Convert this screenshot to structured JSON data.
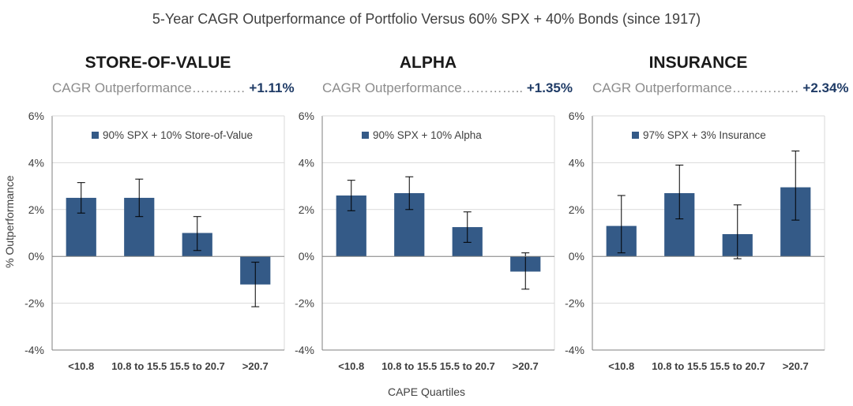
{
  "title": "5-Year CAGR Outperformance of Portfolio Versus 60% SPX + 40% Bonds (since 1917)",
  "xlabel": "CAPE Quartiles",
  "ylabel": "% Outperformance",
  "colors": {
    "bar": "#345a87",
    "text": "#404040",
    "accent": "#1f3b66",
    "grid": "#d9d9d9",
    "subtitle": "#8c8c8c"
  },
  "panels": [
    {
      "heading": "STORE-OF-VALUE",
      "subtitle_label": "CAGR Outperformance",
      "subtitle_dots": "…………",
      "subtitle_value": "+1.11%",
      "legend": "90% SPX + 10% Store-of-Value"
    },
    {
      "heading": "ALPHA",
      "subtitle_label": "CAGR Outperformance",
      "subtitle_dots": "…………..",
      "subtitle_value": "+1.35%",
      "legend": "90% SPX + 10% Alpha"
    },
    {
      "heading": "INSURANCE",
      "subtitle_label": "CAGR Outperformance",
      "subtitle_dots": "……………",
      "subtitle_value": "+2.34%",
      "legend": "97% SPX + 3% Insurance"
    }
  ],
  "chart_data": [
    {
      "type": "bar",
      "title": "STORE-OF-VALUE",
      "categories": [
        "<10.8",
        "10.8 to 15.5",
        "15.5 to 20.7",
        ">20.7"
      ],
      "series": [
        {
          "name": "90% SPX + 10% Store-of-Value",
          "values": [
            2.5,
            2.5,
            1.0,
            -1.2
          ]
        }
      ],
      "error_low": [
        1.85,
        1.7,
        0.25,
        -2.15
      ],
      "error_high": [
        3.15,
        3.3,
        1.7,
        -0.25
      ],
      "xlabel": "CAPE Quartiles",
      "ylabel": "% Outperformance",
      "ylim": [
        -4,
        6
      ],
      "yticks": [
        "6%",
        "4%",
        "2%",
        "0%",
        "-2%",
        "-4%"
      ]
    },
    {
      "type": "bar",
      "title": "ALPHA",
      "categories": [
        "<10.8",
        "10.8 to 15.5",
        "15.5 to 20.7",
        ">20.7"
      ],
      "series": [
        {
          "name": "90% SPX + 10% Alpha",
          "values": [
            2.6,
            2.7,
            1.25,
            -0.65
          ]
        }
      ],
      "error_low": [
        1.95,
        2.0,
        0.6,
        -1.4
      ],
      "error_high": [
        3.25,
        3.4,
        1.9,
        0.15
      ],
      "xlabel": "CAPE Quartiles",
      "ylabel": "% Outperformance",
      "ylim": [
        -4,
        6
      ],
      "yticks": [
        "6%",
        "4%",
        "2%",
        "0%",
        "-2%",
        "-4%"
      ]
    },
    {
      "type": "bar",
      "title": "INSURANCE",
      "categories": [
        "<10.8",
        "10.8 to 15.5",
        "15.5 to 20.7",
        ">20.7"
      ],
      "series": [
        {
          "name": "97% SPX + 3% Insurance",
          "values": [
            1.3,
            2.7,
            0.95,
            2.95
          ]
        }
      ],
      "error_low": [
        0.15,
        1.6,
        -0.1,
        1.55
      ],
      "error_high": [
        2.6,
        3.9,
        2.2,
        4.5
      ],
      "xlabel": "CAPE Quartiles",
      "ylabel": "% Outperformance",
      "ylim": [
        -4,
        6
      ],
      "yticks": [
        "6%",
        "4%",
        "2%",
        "0%",
        "-2%",
        "-4%"
      ]
    }
  ]
}
